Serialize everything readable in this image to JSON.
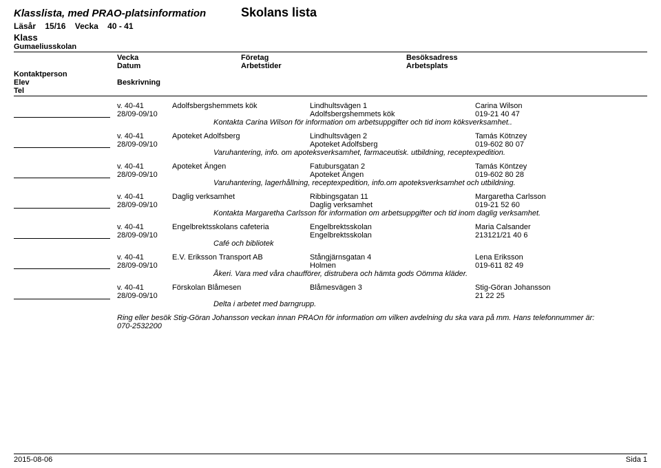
{
  "header": {
    "doc_title": "Klasslista, med PRAO-platsinformation",
    "school_title": "Skolans lista",
    "year_label": "Läsår",
    "year_value": "15/16",
    "week_label": "Vecka",
    "week_range": "40  -  41",
    "klass_label": "Klass",
    "school_name": "Gumaeliusskolan"
  },
  "columns": {
    "elev": "Elev",
    "vecka": "Vecka",
    "datum": "Datum",
    "beskrivning": "Beskrivning",
    "foretag": "Företag",
    "arbetstider": "Arbetstider",
    "besok": "Besöksadress",
    "plats": "Arbetsplats",
    "kontakt": "Kontaktperson",
    "tel": "Tel"
  },
  "entries": [
    {
      "vecka": "v. 40-41",
      "foretag": "Adolfsbergshemmets kök",
      "besok": "Lindhultsvägen 1",
      "kontakt": "Carina Wilson",
      "datum": "28/09-09/10",
      "plats": "Adolfsbergshemmets kök",
      "tel": "019-21 40 47",
      "desc": "Kontakta Carina Wilson för information om arbetsuppgifter och tid inom köksverksamhet.."
    },
    {
      "vecka": "v. 40-41",
      "foretag": "Apoteket Adolfsberg",
      "besok": "Lindhultsvägen 2",
      "kontakt": "Tamás Kötnzey",
      "datum": "28/09-09/10",
      "plats": "Apoteket Adolfsberg",
      "tel": "019-602 80 07",
      "desc": "Varuhantering, info. om apoteksverksamhet, farmaceutisk. utbildning, receptexpedition."
    },
    {
      "vecka": "v. 40-41",
      "foretag": "Apoteket Ängen",
      "besok": "Fatubursgatan 2",
      "kontakt": "Tamás Köntzey",
      "datum": "28/09-09/10",
      "plats": "Apoteket Ängen",
      "tel": "019-602 80 28",
      "desc": "Varuhantering, lagerhållning, receptexpedition, info.om apoteksverksamhet och utbildning."
    },
    {
      "vecka": "v. 40-41",
      "foretag": "Daglig verksamhet",
      "besok": "Ribbingsgatan 11",
      "kontakt": "Margaretha Carlsson",
      "datum": "28/09-09/10",
      "plats": "Daglig verksamhet",
      "tel": "019-21 52 60",
      "desc": "Kontakta Margaretha Carlsson för information om arbetsuppgifter och tid inom daglig verksamhet."
    },
    {
      "vecka": "v. 40-41",
      "foretag": "Engelbrektsskolans cafeteria",
      "besok": "Engelbrektsskolan",
      "kontakt": "Maria Calsander",
      "datum": "28/09-09/10",
      "plats": "Engelbrektsskolan",
      "tel": "213121/21 40 6",
      "desc": "Café och bibliotek"
    },
    {
      "vecka": "v. 40-41",
      "foretag": "E.V. Eriksson Transport AB",
      "besok": "Stångjärnsgatan 4",
      "kontakt": "Lena Eriksson",
      "datum": "28/09-09/10",
      "plats": "Holmen",
      "tel": "019-611 82 49",
      "desc": "Åkeri. Vara med våra chaufförer,  distrubera och hämta gods  Oömma kläder."
    },
    {
      "vecka": "v. 40-41",
      "foretag": "Förskolan Blåmesen",
      "besok": "Blåmesvägen 3",
      "kontakt": "Stig-Göran Johansson",
      "datum": "28/09-09/10",
      "plats": "",
      "tel": "21 22 25",
      "desc": "Delta i arbetet med barngrupp."
    }
  ],
  "note": "Ring eller besök Stig-Göran Johansson veckan innan PRAOn för information om vilken avdelning du ska vara på mm. Hans telefonnummer är: 070-2532200",
  "footer": {
    "date": "2015-08-06",
    "page": "Sida  1"
  }
}
